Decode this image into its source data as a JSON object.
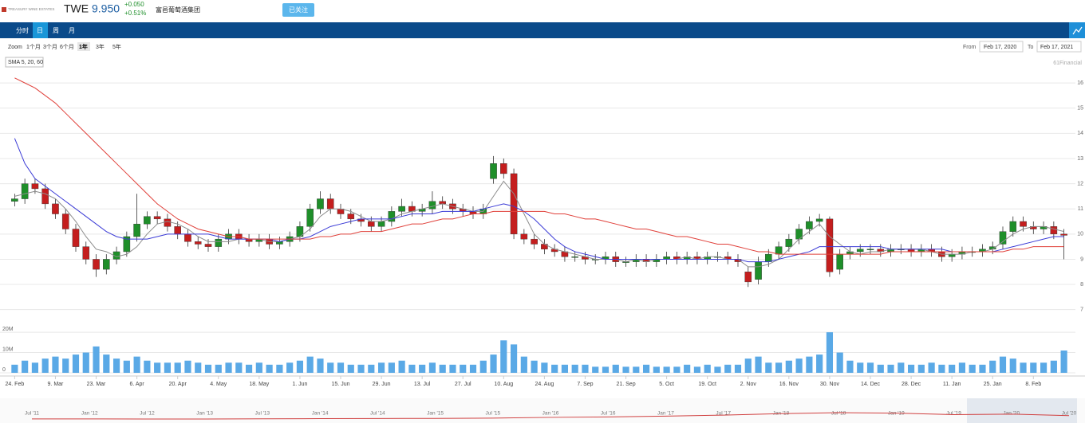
{
  "header": {
    "logo": "TREASURY WINE ESTATES",
    "ticker": "TWE",
    "price": "9.950",
    "change": "+0.050",
    "change_pct": "+0.51%",
    "name": "富邑葡萄酒集团",
    "follow_button": "已关注"
  },
  "tabs": [
    "分时",
    "日",
    "周",
    "月"
  ],
  "zoom": {
    "label": "Zoom",
    "options": [
      "1个月",
      "3个月",
      "6个月",
      "1年",
      "3年",
      "5年"
    ]
  },
  "range": {
    "from_label": "From",
    "from": "Feb 17, 2020",
    "to_label": "To",
    "to": "Feb 17, 2021"
  },
  "credit": "61Financial",
  "chart_data": {
    "type": "candlestick",
    "categories": [
      "24. Feb",
      null,
      null,
      null,
      "9. Mar",
      null,
      null,
      null,
      "23. Mar",
      null,
      null,
      null,
      "6. Apr",
      null,
      null,
      null,
      "20. Apr",
      null,
      null,
      null,
      "4. May",
      null,
      null,
      null,
      "18. May",
      null,
      null,
      null,
      "1. Jun",
      null,
      null,
      null,
      "15. Jun",
      null,
      null,
      null,
      "29. Jun",
      null,
      null,
      null,
      "13. Jul",
      null,
      null,
      null,
      "27. Jul",
      null,
      null,
      null,
      "10. Aug",
      null,
      null,
      null,
      "24. Aug",
      null,
      null,
      null,
      "7. Sep",
      null,
      null,
      null,
      "21. Sep",
      null,
      null,
      null,
      "5. Oct",
      null,
      null,
      null,
      "19. Oct",
      null,
      null,
      null,
      "2. Nov",
      null,
      null,
      null,
      "16. Nov",
      null,
      null,
      null,
      "30. Nov",
      null,
      null,
      null,
      "14. Dec",
      null,
      null,
      null,
      "28. Dec",
      null,
      null,
      null,
      "11. Jan",
      null,
      null,
      null,
      "25. Jan",
      null,
      null,
      null,
      "8. Feb",
      null,
      null,
      null
    ],
    "open": [
      11.3,
      11.4,
      12.0,
      11.8,
      11.2,
      10.8,
      10.2,
      9.5,
      9.0,
      8.6,
      9.0,
      9.3,
      9.9,
      10.4,
      10.7,
      10.6,
      10.3,
      10.0,
      9.7,
      9.6,
      9.5,
      9.8,
      10.0,
      9.8,
      9.7,
      9.8,
      9.6,
      9.7,
      9.9,
      10.3,
      11.0,
      11.4,
      11.0,
      10.8,
      10.6,
      10.5,
      10.3,
      10.5,
      10.9,
      11.1,
      10.9,
      11.0,
      11.3,
      11.2,
      11.0,
      10.9,
      10.8,
      12.2,
      12.8,
      12.4,
      10.0,
      9.8,
      9.6,
      9.4,
      9.3,
      9.1,
      9.1,
      9.0,
      9.0,
      9.1,
      8.9,
      8.9,
      9.0,
      8.9,
      9.0,
      9.1,
      9.0,
      9.1,
      9.0,
      9.1,
      9.1,
      9.0,
      8.5,
      8.2,
      8.9,
      9.2,
      9.5,
      9.8,
      10.2,
      10.5,
      10.6,
      8.6,
      9.2,
      9.3,
      9.4,
      9.4,
      9.3,
      9.4,
      9.4,
      9.3,
      9.4,
      9.3,
      9.1,
      9.2,
      9.3,
      9.3,
      9.4,
      9.6,
      10.1,
      10.5,
      10.3,
      10.2,
      10.3,
      10.0
    ],
    "high": [
      11.6,
      12.2,
      12.2,
      12.0,
      11.4,
      11.0,
      10.4,
      9.7,
      9.2,
      9.2,
      9.5,
      10.1,
      11.6,
      10.9,
      10.9,
      10.8,
      10.5,
      10.2,
      9.9,
      9.8,
      10.0,
      10.2,
      10.2,
      10.0,
      10.0,
      10.0,
      9.9,
      10.1,
      10.5,
      11.2,
      11.7,
      11.6,
      11.2,
      11.0,
      10.8,
      10.7,
      10.7,
      11.1,
      11.4,
      11.3,
      11.2,
      11.7,
      11.5,
      11.4,
      11.2,
      11.1,
      11.2,
      13.1,
      13.0,
      12.6,
      10.2,
      10.0,
      9.8,
      9.6,
      9.5,
      9.3,
      9.3,
      9.2,
      9.3,
      9.3,
      9.1,
      9.2,
      9.2,
      9.2,
      9.3,
      9.3,
      9.3,
      9.3,
      9.3,
      9.3,
      9.3,
      9.2,
      8.7,
      9.1,
      9.4,
      9.7,
      10.0,
      10.4,
      10.7,
      10.8,
      10.7,
      9.4,
      9.5,
      9.6,
      9.6,
      9.6,
      9.6,
      9.6,
      9.6,
      9.6,
      9.6,
      9.5,
      9.4,
      9.5,
      9.5,
      9.6,
      9.7,
      10.3,
      10.7,
      10.7,
      10.5,
      10.5,
      10.5,
      10.2
    ],
    "low": [
      11.1,
      11.2,
      11.6,
      11.0,
      10.6,
      10.0,
      9.3,
      8.8,
      8.3,
      8.4,
      8.8,
      9.1,
      9.7,
      10.2,
      10.4,
      10.1,
      9.8,
      9.5,
      9.4,
      9.3,
      9.3,
      9.6,
      9.6,
      9.5,
      9.5,
      9.4,
      9.4,
      9.5,
      9.7,
      10.1,
      10.8,
      10.8,
      10.6,
      10.4,
      10.3,
      10.1,
      10.1,
      10.3,
      10.7,
      10.7,
      10.7,
      10.8,
      11.0,
      10.8,
      10.7,
      10.6,
      10.6,
      12.0,
      12.2,
      9.8,
      9.6,
      9.4,
      9.2,
      9.1,
      8.9,
      8.9,
      8.8,
      8.8,
      8.8,
      8.7,
      8.7,
      8.7,
      8.7,
      8.7,
      8.8,
      8.8,
      8.8,
      8.8,
      8.8,
      8.9,
      8.8,
      8.7,
      7.9,
      8.0,
      8.7,
      9.0,
      9.3,
      9.6,
      10.0,
      10.3,
      8.3,
      8.4,
      9.0,
      9.1,
      9.2,
      9.1,
      9.1,
      9.2,
      9.1,
      9.1,
      9.1,
      8.9,
      8.9,
      9.0,
      9.1,
      9.1,
      9.2,
      9.4,
      9.9,
      10.1,
      10.0,
      10.0,
      9.8,
      9.0
    ],
    "close": [
      11.4,
      12.0,
      11.8,
      11.2,
      10.8,
      10.2,
      9.5,
      9.0,
      8.6,
      9.0,
      9.3,
      9.9,
      10.4,
      10.7,
      10.6,
      10.3,
      10.0,
      9.7,
      9.6,
      9.5,
      9.8,
      10.0,
      9.8,
      9.7,
      9.8,
      9.6,
      9.7,
      9.9,
      10.3,
      11.0,
      11.4,
      11.0,
      10.8,
      10.6,
      10.5,
      10.3,
      10.5,
      10.9,
      11.1,
      10.9,
      11.0,
      11.3,
      11.2,
      11.0,
      10.9,
      10.8,
      11.0,
      12.8,
      12.4,
      10.0,
      9.8,
      9.6,
      9.4,
      9.3,
      9.1,
      9.1,
      9.0,
      9.0,
      9.1,
      8.9,
      8.9,
      9.0,
      8.9,
      9.0,
      9.1,
      9.0,
      9.1,
      9.0,
      9.1,
      9.1,
      9.0,
      8.9,
      8.1,
      8.9,
      9.2,
      9.5,
      9.8,
      10.2,
      10.5,
      10.6,
      8.5,
      9.2,
      9.3,
      9.4,
      9.4,
      9.3,
      9.4,
      9.4,
      9.3,
      9.4,
      9.3,
      9.1,
      9.2,
      9.3,
      9.3,
      9.4,
      9.5,
      10.1,
      10.5,
      10.3,
      10.2,
      10.3,
      10.0,
      9.95
    ],
    "up_color": "#1f8f2a",
    "down_color": "#c41e1e",
    "ylim": [
      6.8,
      16.7
    ],
    "yticks": [
      7,
      8,
      9,
      10,
      11,
      12,
      13,
      14,
      15,
      16
    ],
    "grid": true,
    "indicator_label": "SMA 5, 20, 60",
    "lines": [
      {
        "color": "#8c8c8c",
        "values": [
          11.5,
          11.6,
          11.7,
          11.6,
          11.4,
          11.0,
          10.5,
          9.9,
          9.4,
          9.3,
          9.1,
          9.2,
          9.5,
          10.0,
          10.4,
          10.5,
          10.4,
          10.2,
          9.9,
          9.7,
          9.7,
          9.7,
          9.8,
          9.8,
          9.8,
          9.7,
          9.7,
          9.8,
          9.9,
          10.2,
          10.7,
          11.0,
          11.0,
          10.9,
          10.7,
          10.5,
          10.5,
          10.6,
          10.8,
          10.9,
          11.0,
          11.1,
          11.2,
          11.1,
          11.0,
          10.9,
          10.9,
          11.5,
          12.1,
          11.6,
          10.8,
          10.0,
          9.6,
          9.4,
          9.3,
          9.2,
          9.1,
          9.0,
          9.0,
          9.0,
          8.9,
          9.0,
          8.9,
          9.0,
          9.0,
          9.0,
          9.1,
          9.0,
          9.1,
          9.1,
          9.0,
          9.0,
          8.7,
          8.7,
          8.8,
          9.0,
          9.4,
          9.8,
          10.1,
          10.4,
          9.9,
          9.6,
          9.3,
          9.2,
          9.3,
          9.3,
          9.4,
          9.4,
          9.4,
          9.4,
          9.3,
          9.2,
          9.2,
          9.2,
          9.3,
          9.3,
          9.4,
          9.7,
          10.0,
          10.2,
          10.3,
          10.3,
          10.2,
          10.1
        ]
      },
      {
        "color": "#3b3bd6",
        "values": [
          13.8,
          12.8,
          12.2,
          11.9,
          11.6,
          11.3,
          11.0,
          10.7,
          10.4,
          10.1,
          9.9,
          9.8,
          9.8,
          9.8,
          9.9,
          10.0,
          10.0,
          10.0,
          10.0,
          10.0,
          9.9,
          9.8,
          9.8,
          9.8,
          9.8,
          9.8,
          9.7,
          9.8,
          9.8,
          9.9,
          10.1,
          10.3,
          10.4,
          10.5,
          10.6,
          10.6,
          10.6,
          10.6,
          10.7,
          10.8,
          10.8,
          10.8,
          10.9,
          10.9,
          10.9,
          10.9,
          11.0,
          11.1,
          11.2,
          11.1,
          10.9,
          10.6,
          10.2,
          9.8,
          9.5,
          9.3,
          9.2,
          9.1,
          9.0,
          9.0,
          9.0,
          9.0,
          9.0,
          9.0,
          9.0,
          9.0,
          9.0,
          9.0,
          9.0,
          9.0,
          9.0,
          9.0,
          8.9,
          8.9,
          8.9,
          9.0,
          9.1,
          9.2,
          9.3,
          9.5,
          9.5,
          9.5,
          9.5,
          9.5,
          9.5,
          9.5,
          9.4,
          9.4,
          9.4,
          9.4,
          9.4,
          9.4,
          9.3,
          9.3,
          9.3,
          9.3,
          9.3,
          9.4,
          9.5,
          9.6,
          9.7,
          9.8,
          9.9,
          9.9
        ]
      },
      {
        "color": "#e0403a",
        "values": [
          16.2,
          16.0,
          15.8,
          15.5,
          15.2,
          14.8,
          14.4,
          14.0,
          13.6,
          13.2,
          12.8,
          12.4,
          12.0,
          11.6,
          11.2,
          10.9,
          10.6,
          10.4,
          10.2,
          10.1,
          10.0,
          9.9,
          9.9,
          9.8,
          9.8,
          9.8,
          9.8,
          9.8,
          9.8,
          9.8,
          9.9,
          9.9,
          10.0,
          10.0,
          10.1,
          10.1,
          10.1,
          10.2,
          10.3,
          10.4,
          10.4,
          10.5,
          10.6,
          10.6,
          10.7,
          10.8,
          10.8,
          10.9,
          10.9,
          10.9,
          10.9,
          10.9,
          10.9,
          10.8,
          10.8,
          10.7,
          10.6,
          10.6,
          10.5,
          10.4,
          10.3,
          10.2,
          10.2,
          10.1,
          10.0,
          9.9,
          9.9,
          9.8,
          9.7,
          9.6,
          9.6,
          9.5,
          9.4,
          9.3,
          9.3,
          9.2,
          9.2,
          9.2,
          9.2,
          9.2,
          9.2,
          9.2,
          9.2,
          9.2,
          9.2,
          9.2,
          9.3,
          9.3,
          9.3,
          9.3,
          9.3,
          9.3,
          9.3,
          9.3,
          9.3,
          9.3,
          9.3,
          9.3,
          9.4,
          9.4,
          9.5,
          9.5,
          9.5,
          9.5
        ]
      }
    ],
    "volume": {
      "color": "#5aa9e6",
      "values": [
        4,
        6,
        5,
        7,
        8,
        7,
        9,
        10,
        13,
        9,
        7,
        6,
        8,
        6,
        5,
        5,
        5,
        6,
        5,
        4,
        4,
        5,
        5,
        4,
        5,
        4,
        4,
        5,
        6,
        8,
        7,
        5,
        5,
        4,
        4,
        4,
        5,
        5,
        6,
        4,
        4,
        5,
        4,
        4,
        4,
        4,
        6,
        9,
        16,
        14,
        8,
        6,
        5,
        4,
        4,
        4,
        4,
        3,
        3,
        4,
        3,
        3,
        4,
        3,
        3,
        3,
        4,
        3,
        4,
        3,
        4,
        4,
        7,
        8,
        5,
        5,
        6,
        7,
        8,
        9,
        20,
        10,
        6,
        5,
        5,
        4,
        4,
        5,
        4,
        4,
        5,
        4,
        4,
        5,
        4,
        4,
        6,
        8,
        7,
        5,
        5,
        5,
        6,
        11
      ],
      "ylim": [
        0,
        22
      ],
      "yticks": [
        0,
        {
          "value": 10,
          "label": "10M"
        },
        {
          "value": 20,
          "label": "20M"
        }
      ]
    },
    "navigator": {
      "color": "#d04040",
      "categories": [
        "Jul '11",
        "Jan '12",
        "Jul '12",
        "Jan '13",
        "Jul '13",
        "Jan '14",
        "Jul '14",
        "Jan '15",
        "Jul '15",
        "Jan '16",
        "Jul '16",
        "Jan '17",
        "Jul '17",
        "Jan '18",
        "Jul '18",
        "Jan '19",
        "Jul '19",
        "Jan '20",
        "Jul '20"
      ],
      "values": [
        3.5,
        3.4,
        3.3,
        3.2,
        3.6,
        4.0,
        4.3,
        4.5,
        5.0,
        6.5,
        7.5,
        9,
        11,
        14,
        16,
        15,
        12,
        13,
        10
      ],
      "ylim": [
        0,
        40
      ]
    }
  }
}
